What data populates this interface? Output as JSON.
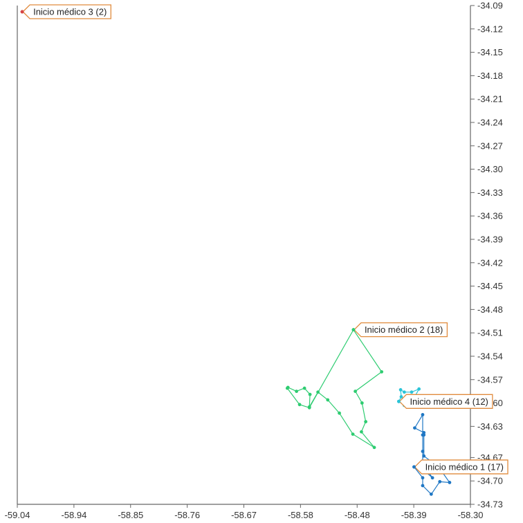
{
  "chart_data": {
    "type": "scatter",
    "title": "",
    "xlabel": "",
    "ylabel": "",
    "xlim": [
      -59.04,
      -58.3
    ],
    "ylim": [
      -34.73,
      -34.09
    ],
    "x_ticks": [
      "-59.04",
      "-58.94",
      "-58.85",
      "-58.76",
      "-58.67",
      "-58.58",
      "-58.48",
      "-58.39",
      "-58.30"
    ],
    "x_tick_values": [
      -59.04,
      -58.9475,
      -58.855,
      -58.7625,
      -58.67,
      -58.5775,
      -58.485,
      -58.3925,
      -58.3
    ],
    "y_ticks": [
      "-34.09",
      "-34.12",
      "-34.15",
      "-34.18",
      "-34.21",
      "-34.24",
      "-34.27",
      "-34.30",
      "-34.33",
      "-34.36",
      "-34.39",
      "-34.42",
      "-34.45",
      "-34.48",
      "-34.51",
      "-34.54",
      "-34.57",
      "-34.60",
      "-34.63",
      "-34.67",
      "-34.70",
      "-34.73"
    ],
    "y_tick_values": [
      -34.09,
      -34.12,
      -34.15,
      -34.18,
      -34.21,
      -34.24,
      -34.27,
      -34.3,
      -34.33,
      -34.36,
      -34.39,
      -34.42,
      -34.45,
      -34.48,
      -34.51,
      -34.54,
      -34.57,
      -34.6,
      -34.63,
      -34.67,
      -34.7,
      -34.73
    ],
    "grid": false,
    "series": [
      {
        "label": "Inicio médico 1 (17)",
        "color": "#1f77c4",
        "start": [
          -58.392,
          -34.682
        ],
        "points": [
          [
            -58.392,
            -34.682
          ],
          [
            -58.378,
            -34.696
          ],
          [
            -58.378,
            -34.706
          ],
          [
            -58.364,
            -34.717
          ],
          [
            -58.35,
            -34.701
          ],
          [
            -58.334,
            -34.702
          ],
          [
            -58.352,
            -34.682
          ],
          [
            -58.376,
            -34.668
          ],
          [
            -58.376,
            -34.641
          ],
          [
            -58.376,
            -34.638
          ],
          [
            -58.391,
            -34.632
          ],
          [
            -58.378,
            -34.615
          ],
          [
            -58.378,
            -34.641
          ],
          [
            -58.378,
            -34.662
          ],
          [
            -58.378,
            -34.678
          ],
          [
            -58.362,
            -34.696
          ],
          [
            -58.378,
            -34.685
          ],
          [
            -58.392,
            -34.682
          ]
        ]
      },
      {
        "label": "Inicio médico 2 (18)",
        "color": "#2ecc71",
        "start": [
          -58.491,
          -34.506
        ],
        "points": [
          [
            -58.491,
            -34.506
          ],
          [
            -58.445,
            -34.56
          ],
          [
            -58.488,
            -34.585
          ],
          [
            -58.477,
            -34.6
          ],
          [
            -58.471,
            -34.624
          ],
          [
            -58.478,
            -34.637
          ],
          [
            -58.457,
            -34.657
          ],
          [
            -58.492,
            -34.64
          ],
          [
            -58.514,
            -34.613
          ],
          [
            -58.533,
            -34.596
          ],
          [
            -58.549,
            -34.586
          ],
          [
            -58.563,
            -34.605
          ],
          [
            -58.562,
            -34.589
          ],
          [
            -58.571,
            -34.581
          ],
          [
            -58.584,
            -34.585
          ],
          [
            -58.598,
            -34.58
          ],
          [
            -58.599,
            -34.581
          ],
          [
            -58.579,
            -34.602
          ],
          [
            -58.563,
            -34.606
          ],
          [
            -58.491,
            -34.506
          ]
        ]
      },
      {
        "label": "Inicio médico 3 (2)",
        "color": "#d64545",
        "start": [
          -59.032,
          -34.098
        ],
        "points": [
          [
            -59.032,
            -34.098
          ],
          [
            -59.032,
            -34.098
          ]
        ]
      },
      {
        "label": "Inicio médico 4 (12)",
        "color": "#2bc4d8",
        "start": [
          -58.417,
          -34.598
        ],
        "points": [
          [
            -58.417,
            -34.598
          ],
          [
            -58.413,
            -34.592
          ],
          [
            -58.414,
            -34.583
          ],
          [
            -58.408,
            -34.586
          ],
          [
            -58.396,
            -34.586
          ],
          [
            -58.384,
            -34.582
          ],
          [
            -58.393,
            -34.595
          ],
          [
            -58.402,
            -34.598
          ],
          [
            -58.408,
            -34.603
          ],
          [
            -58.417,
            -34.598
          ]
        ]
      }
    ]
  }
}
